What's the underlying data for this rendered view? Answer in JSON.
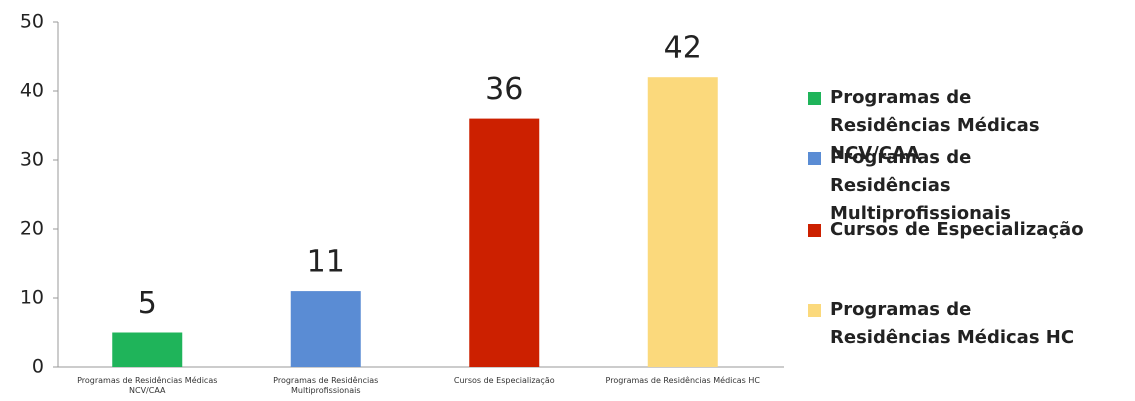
{
  "chart_data": {
    "type": "bar",
    "categories": [
      "Programas de Residências Médicas NCV/CAA",
      "Programas de Residências Multiprofissionais",
      "Cursos de Especialização",
      "Programas de Residências Médicas HC"
    ],
    "values": [
      5,
      11,
      36,
      42
    ],
    "colors": [
      "#1fb45a",
      "#5a8cd4",
      "#cc2000",
      "#fbd97c"
    ],
    "ylim": [
      0,
      50
    ],
    "yticks": [
      0,
      10,
      20,
      30,
      40,
      50
    ],
    "grid": false,
    "legend": "right"
  }
}
